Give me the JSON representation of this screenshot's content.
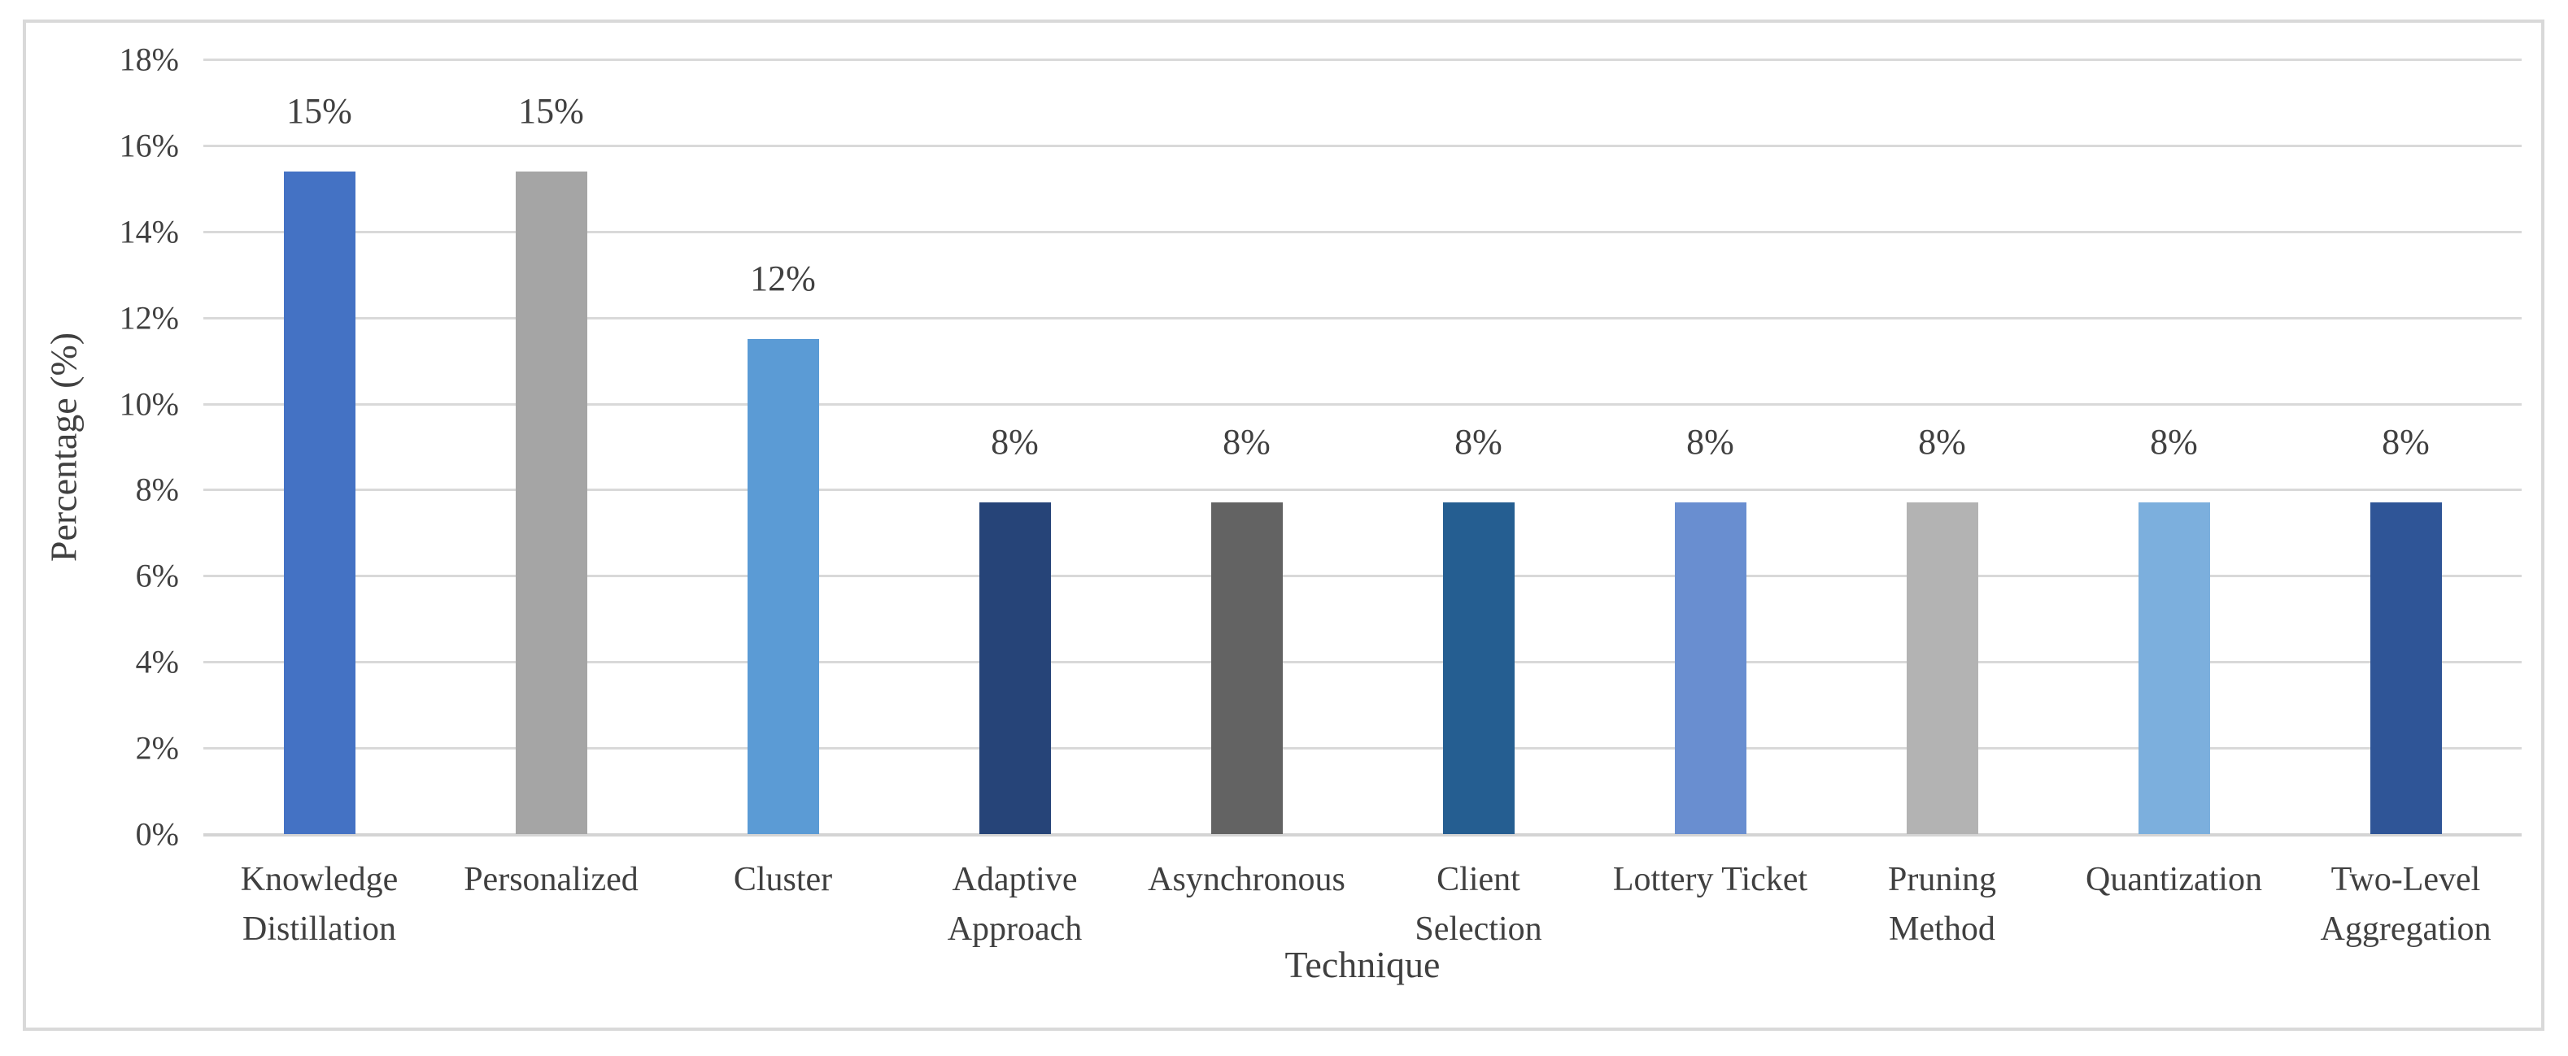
{
  "figure": {
    "background": "#ffffff",
    "frame_border_color": "#d9d9d9"
  },
  "chart_data": {
    "type": "bar",
    "title": "",
    "xlabel": "Technique",
    "ylabel": "Percentage (%)",
    "ylim": [
      0,
      18
    ],
    "y_tick_step": 2,
    "y_tick_labels": [
      "18%",
      "16%",
      "14%",
      "12%",
      "10%",
      "8%",
      "6%",
      "4%",
      "2%",
      "0%"
    ],
    "grid": true,
    "legend": false,
    "categories": [
      "Knowledge Distillation",
      "Personalized",
      "Cluster",
      "Adaptive Approach",
      "Asynchronous",
      "Client Selection",
      "Lottery Ticket",
      "Pruning Method",
      "Quantization",
      "Two-Level Aggregation"
    ],
    "category_label_lines": [
      [
        "Knowledge",
        "Distillation"
      ],
      [
        "Personalized"
      ],
      [
        "Cluster"
      ],
      [
        "Adaptive",
        "Approach"
      ],
      [
        "Asynchronous"
      ],
      [
        "Client",
        "Selection"
      ],
      [
        "Lottery Ticket"
      ],
      [
        "Pruning",
        "Method"
      ],
      [
        "Quantization"
      ],
      [
        "Two-Level",
        "Aggregation"
      ]
    ],
    "values": [
      15.4,
      15.4,
      11.5,
      7.7,
      7.7,
      7.7,
      7.7,
      7.7,
      7.7,
      7.7
    ],
    "data_labels": [
      "15%",
      "15%",
      "12%",
      "8%",
      "8%",
      "8%",
      "8%",
      "8%",
      "8%",
      "8%"
    ],
    "bar_colors": [
      "#4472c4",
      "#a5a5a5",
      "#5b9bd5",
      "#264478",
      "#636363",
      "#255e91",
      "#698ed0",
      "#b3b3b3",
      "#7cafdd",
      "#2f5597"
    ],
    "gridline_color": "#d9d9d9",
    "axis_line_color": "#d4d4d4",
    "text_color": "#404040"
  }
}
